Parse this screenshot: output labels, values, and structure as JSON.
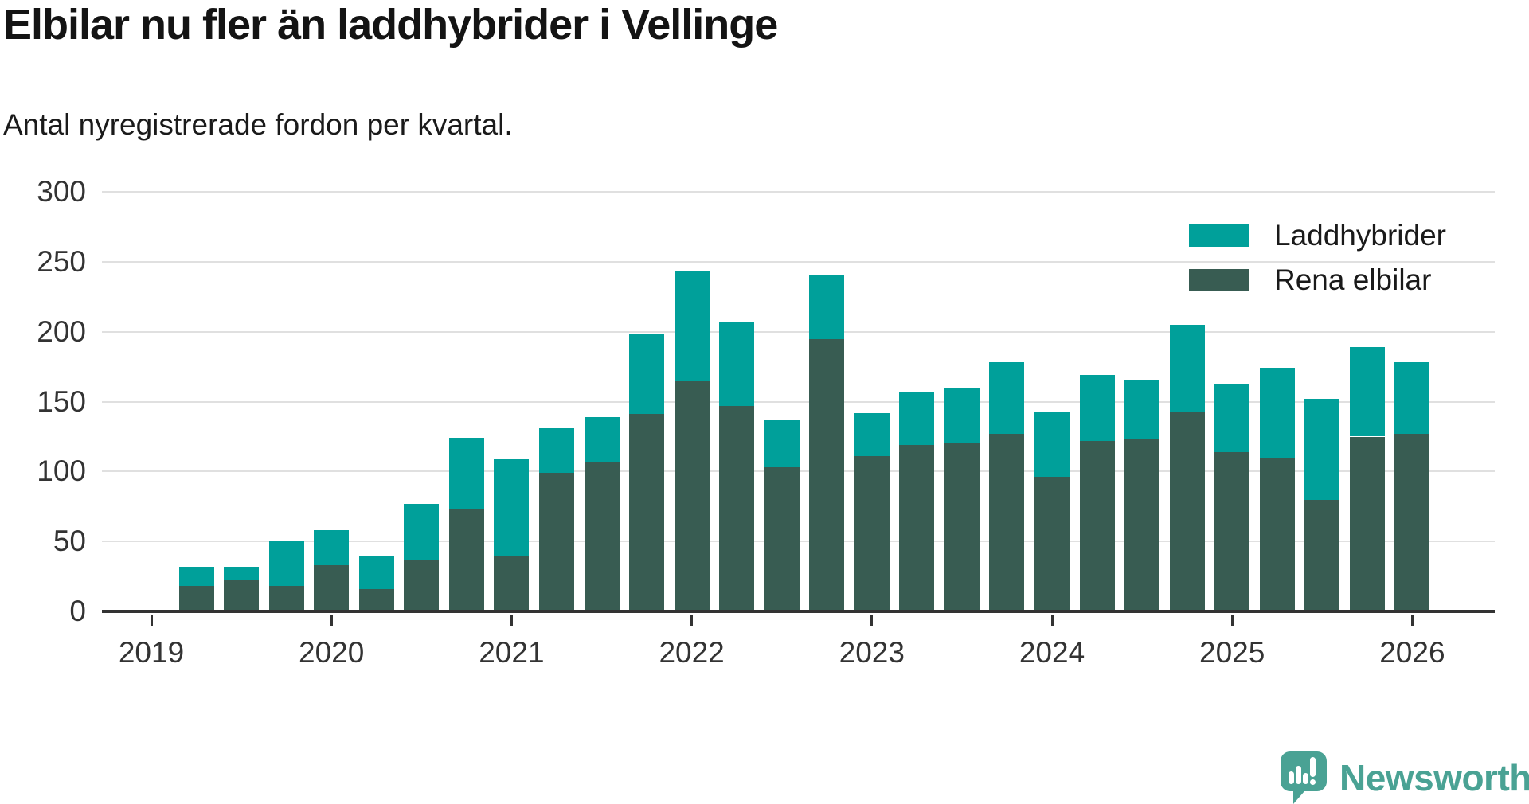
{
  "title": "Elbilar nu fler än laddhybrider i Vellinge",
  "subtitle": "Antal nyregistrerade fordon per kvartal.",
  "legend": {
    "items": [
      {
        "label": "Laddhybrider",
        "color": "#00a09a"
      },
      {
        "label": "Rena elbilar",
        "color": "#385c52"
      }
    ]
  },
  "branding": {
    "logo_text": "Newsworthy",
    "color": "#4aa294"
  },
  "chart_data": {
    "type": "bar",
    "stacked": true,
    "title": "Elbilar nu fler än laddhybrider i Vellinge",
    "subtitle": "Antal nyregistrerade fordon per kvartal.",
    "categories": [
      "2019 Q2",
      "2019 Q3",
      "2019 Q4",
      "2020 Q1",
      "2020 Q2",
      "2020 Q3",
      "2020 Q4",
      "2021 Q1",
      "2021 Q2",
      "2021 Q3",
      "2021 Q4",
      "2022 Q1",
      "2022 Q2",
      "2022 Q3",
      "2022 Q4",
      "2023 Q1",
      "2023 Q2",
      "2023 Q3",
      "2023 Q4",
      "2024 Q1",
      "2024 Q2",
      "2024 Q3",
      "2024 Q4",
      "2025 Q1",
      "2025 Q2",
      "2025 Q3",
      "2025 Q4",
      "2026 Q1"
    ],
    "series": [
      {
        "name": "Rena elbilar",
        "color": "#385c52",
        "values": [
          18,
          22,
          18,
          33,
          16,
          37,
          73,
          40,
          99,
          107,
          141,
          165,
          147,
          103,
          195,
          111,
          119,
          120,
          127,
          96,
          122,
          123,
          143,
          114,
          110,
          80,
          125,
          127
        ]
      },
      {
        "name": "Laddhybrider",
        "color": "#00a09a",
        "values": [
          14,
          10,
          32,
          25,
          24,
          40,
          51,
          69,
          32,
          32,
          57,
          79,
          60,
          34,
          46,
          31,
          38,
          40,
          51,
          47,
          47,
          43,
          62,
          49,
          64,
          72,
          64,
          51
        ]
      }
    ],
    "x_tick_labels": [
      "2019",
      "2020",
      "2021",
      "2022",
      "2023",
      "2024",
      "2025",
      "2026"
    ],
    "y_ticks": [
      0,
      50,
      100,
      150,
      200,
      250,
      300
    ],
    "ylim": [
      0,
      300
    ],
    "grid": "horizontal",
    "legend_position": "top-right"
  }
}
